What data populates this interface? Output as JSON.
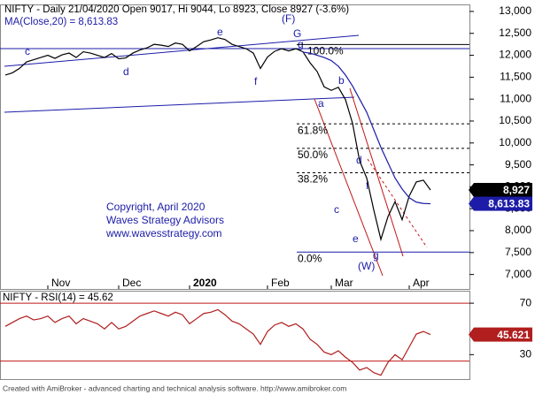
{
  "chart_data": [
    {
      "type": "line",
      "title": "NIFTY - Daily 21/04/2020 Open 9017, Hi 9044, Lo 8923, Close 8927 (-3.6%)",
      "subtitle": "MA(Close,20) = 8,613.83",
      "categories": [
        null,
        null,
        null,
        null,
        null,
        null,
        "Nov",
        null,
        null,
        null,
        null,
        null,
        null,
        null,
        null,
        null,
        "Dec",
        null,
        null,
        null,
        null,
        null,
        null,
        null,
        null,
        null,
        "2020",
        null,
        null,
        null,
        null,
        null,
        null,
        null,
        null,
        null,
        null,
        "Feb",
        null,
        null,
        null,
        null,
        null,
        null,
        null,
        null,
        "Mar",
        null,
        null,
        null,
        null,
        null,
        null,
        null,
        null,
        null,
        null,
        "Apr",
        null,
        null,
        null
      ],
      "series": [
        {
          "color": "#000000",
          "last_label": "8,927",
          "values": [
            11550,
            11600,
            11700,
            11850,
            11900,
            11950,
            12000,
            11930,
            12010,
            12050,
            11950,
            12080,
            12050,
            12000,
            11950,
            12040,
            11920,
            11940,
            12050,
            12120,
            12170,
            12250,
            12230,
            12200,
            12280,
            12250,
            12100,
            12200,
            12310,
            12350,
            12400,
            12360,
            12250,
            12200,
            12150,
            12050,
            11700,
            11960,
            12090,
            12150,
            12100,
            12150,
            12080,
            11830,
            11630,
            11280,
            11200,
            11270,
            10990,
            10450,
            9590,
            9200,
            8470,
            7800,
            8320,
            8660,
            8250,
            8790,
            9110,
            9150,
            8927
          ]
        },
        {
          "color": "#1c1ca8",
          "last_label": "8,613.83",
          "values": [
            null,
            null,
            null,
            null,
            null,
            null,
            null,
            null,
            null,
            null,
            null,
            null,
            null,
            null,
            null,
            null,
            null,
            null,
            null,
            null,
            null,
            null,
            null,
            null,
            null,
            null,
            null,
            null,
            null,
            null,
            null,
            null,
            null,
            null,
            null,
            null,
            null,
            null,
            null,
            null,
            null,
            null,
            12070,
            12050,
            12000,
            11950,
            11880,
            11750,
            11550,
            11300,
            11000,
            10700,
            10300,
            9900,
            9550,
            9200,
            8950,
            8750,
            8650,
            8620,
            8613.83
          ]
        }
      ],
      "ylim": [
        6670,
        13140
      ],
      "yticks": [
        {
          "value": 7000,
          "label": "7,000"
        },
        {
          "value": 7500,
          "label": "7,500"
        },
        {
          "value": 8000,
          "label": "8,000"
        },
        {
          "value": 8500,
          "label": "8,500"
        },
        {
          "value": 9000,
          "label": "9,000"
        },
        {
          "value": 9500,
          "label": "9,500"
        },
        {
          "value": 10000,
          "label": "10,000"
        },
        {
          "value": 10500,
          "label": "10,500"
        },
        {
          "value": 11000,
          "label": "11,000"
        },
        {
          "value": 11500,
          "label": "11,500"
        },
        {
          "value": 12000,
          "label": "12,000"
        },
        {
          "value": 12500,
          "label": "12,500"
        },
        {
          "value": 13000,
          "label": "13,000"
        }
      ],
      "fib_levels": [
        {
          "label": "100.0%",
          "value": 12246
        },
        {
          "label": "61.8%",
          "value": 10437
        },
        {
          "label": "50.0%",
          "value": 9878
        },
        {
          "label": "38.2%",
          "value": 9320
        },
        {
          "label": "0.0%",
          "value": 7511
        }
      ],
      "annotations": [
        "(F)",
        "G",
        "e",
        "c",
        "d",
        "f",
        "g",
        "a",
        "b",
        "c",
        "d",
        "e",
        "f",
        "g",
        "(W)"
      ],
      "copyright": [
        "Copyright, April 2020",
        "Waves Strategy Advisors",
        "www.wavesstrategy.com"
      ]
    },
    {
      "type": "line",
      "title": "NIFTY - RSI(14) = 45.62",
      "series": [
        {
          "color": "#b01e1e",
          "last_label": "45.621",
          "values": [
            52,
            55,
            58,
            60,
            57,
            58,
            60,
            55,
            58,
            60,
            54,
            58,
            56,
            54,
            50,
            55,
            50,
            52,
            56,
            60,
            62,
            64,
            62,
            60,
            63,
            61,
            54,
            58,
            62,
            63,
            65,
            61,
            56,
            54,
            50,
            46,
            38,
            48,
            53,
            55,
            52,
            54,
            50,
            42,
            38,
            32,
            30,
            33,
            28,
            24,
            18,
            20,
            16,
            14,
            24,
            30,
            26,
            36,
            46,
            48,
            45.62
          ]
        }
      ],
      "levels": [
        70,
        25
      ],
      "ylim": [
        11,
        79
      ],
      "yticks": [
        30,
        70
      ]
    }
  ],
  "footer": "Created with AmiBroker - advanced charting and technical analysis software. http://www.amibroker.com"
}
